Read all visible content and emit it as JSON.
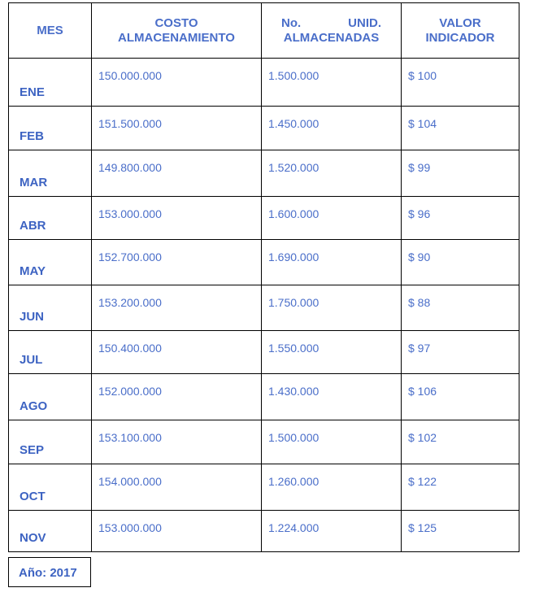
{
  "headers": {
    "mes": "MES",
    "costo_line1": "COSTO",
    "costo_line2": "ALMACENAMIENTO",
    "units_line1a": "No.",
    "units_line1b": "UNID.",
    "units_line2": "ALMACENADAS",
    "valor_line1": "VALOR",
    "valor_line2": "INDICADOR"
  },
  "rows": [
    {
      "mes": "ENE",
      "costo": "150.000.000",
      "unidades": "1.500.000",
      "indicador": "$ 100"
    },
    {
      "mes": "FEB",
      "costo": "151.500.000",
      "unidades": "1.450.000",
      "indicador": "$ 104"
    },
    {
      "mes": "MAR",
      "costo": "149.800.000",
      "unidades": "1.520.000",
      "indicador": "$ 99"
    },
    {
      "mes": "ABR",
      "costo": "153.000.000",
      "unidades": "1.600.000",
      "indicador": "$ 96"
    },
    {
      "mes": "MAY",
      "costo": "152.700.000",
      "unidades": "1.690.000",
      "indicador": "$ 90"
    },
    {
      "mes": "JUN",
      "costo": "153.200.000",
      "unidades": "1.750.000",
      "indicador": "$ 88"
    },
    {
      "mes": "JUL",
      "costo": "150.400.000",
      "unidades": "1.550.000",
      "indicador": "$ 97"
    },
    {
      "mes": "AGO",
      "costo": "152.000.000",
      "unidades": "1.430.000",
      "indicador": "$ 106"
    },
    {
      "mes": "SEP",
      "costo": "153.100.000",
      "unidades": "1.500.000",
      "indicador": "$ 102"
    },
    {
      "mes": "OCT",
      "costo": "154.000.000",
      "unidades": "1.260.000",
      "indicador": "$ 122"
    },
    {
      "mes": "NOV",
      "costo": "153.000.000",
      "unidades": "1.224.000",
      "indicador": "$ 125"
    }
  ],
  "footer": {
    "year_label": "Año: 2017"
  },
  "colors": {
    "text_blue": "#4a6ec9",
    "border": "#000000"
  }
}
